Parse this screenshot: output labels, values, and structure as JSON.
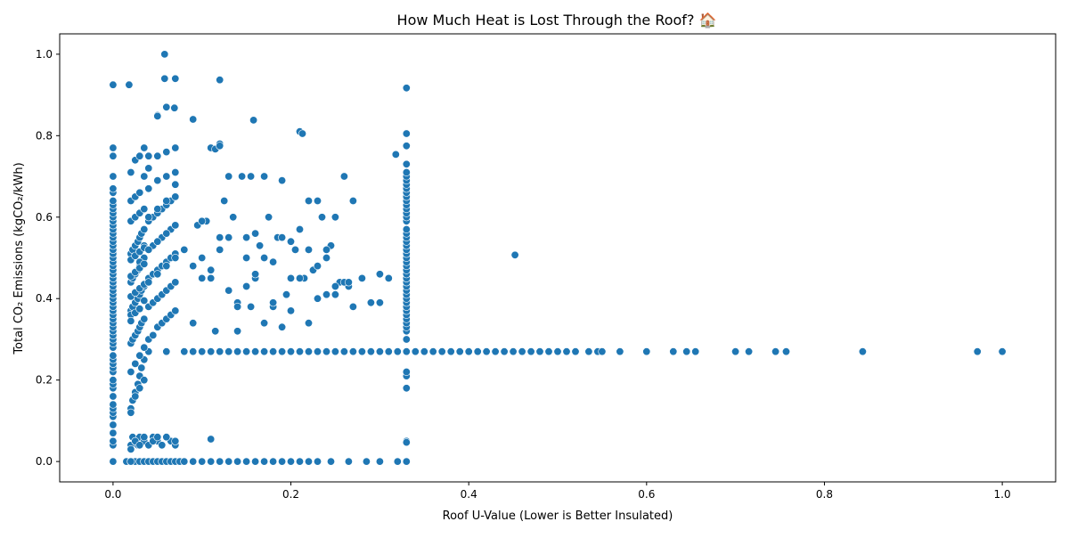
{
  "chart_data": {
    "type": "scatter",
    "title": "How Much Heat is Lost Through the Roof? 🏠",
    "xlabel": "Roof U-Value (Lower is Better Insulated)",
    "ylabel": "Total CO₂ Emissions (kgCO₂/kWh)",
    "xlim": [
      -0.06,
      1.06
    ],
    "ylim": [
      -0.05,
      1.05
    ],
    "xticks": [
      0.0,
      0.2,
      0.4,
      0.6,
      0.8,
      1.0
    ],
    "xtick_labels": [
      "0.0",
      "0.2",
      "0.4",
      "0.6",
      "0.8",
      "1.0"
    ],
    "yticks": [
      0.0,
      0.2,
      0.4,
      0.6,
      0.8,
      1.0
    ],
    "ytick_labels": [
      "0.0",
      "0.2",
      "0.4",
      "0.6",
      "0.8",
      "1.0"
    ],
    "grid": false,
    "legend": "none",
    "marker_color": "#1f77b4",
    "marker_edge": "#ffffff",
    "series": [
      {
        "x": [
          0.0,
          0.0,
          0.0,
          0.0,
          0.0,
          0.0,
          0.0,
          0.0,
          0.0,
          0.0,
          0.0,
          0.0,
          0.0,
          0.0,
          0.0,
          0.0,
          0.0,
          0.0,
          0.0,
          0.0,
          0.0,
          0.0,
          0.0,
          0.0,
          0.0,
          0.0,
          0.0,
          0.0,
          0.0,
          0.0,
          0.0,
          0.0,
          0.0,
          0.0,
          0.0,
          0.0,
          0.0,
          0.0,
          0.0,
          0.0,
          0.0,
          0.0,
          0.0,
          0.0,
          0.0,
          0.0,
          0.0,
          0.0,
          0.0,
          0.0,
          0.0,
          0.0,
          0.0,
          0.0,
          0.0,
          0.0,
          0.0,
          0.0,
          0.0,
          0.0,
          0.33,
          0.33,
          0.33,
          0.33,
          0.33,
          0.33,
          0.33,
          0.33,
          0.33,
          0.33,
          0.33,
          0.33,
          0.33,
          0.33,
          0.33,
          0.33,
          0.33,
          0.33,
          0.33,
          0.33,
          0.33,
          0.33,
          0.33,
          0.33,
          0.33,
          0.33,
          0.33,
          0.33,
          0.33,
          0.33,
          0.33,
          0.33,
          0.33,
          0.33,
          0.33,
          0.33,
          0.33,
          0.33,
          0.33,
          0.33,
          0.33,
          0.33,
          0.33,
          0.33,
          0.33,
          0.33,
          0.33,
          0.33,
          0.33,
          0.33,
          0.04,
          0.06,
          0.08,
          0.09,
          0.1,
          0.11,
          0.12,
          0.13,
          0.14,
          0.15,
          0.16,
          0.17,
          0.18,
          0.19,
          0.2,
          0.21,
          0.22,
          0.23,
          0.24,
          0.25,
          0.26,
          0.27,
          0.28,
          0.29,
          0.3,
          0.31,
          0.32,
          0.34,
          0.35,
          0.36,
          0.37,
          0.38,
          0.39,
          0.4,
          0.41,
          0.42,
          0.43,
          0.44,
          0.45,
          0.46,
          0.47,
          0.48,
          0.49,
          0.5,
          0.51,
          0.52,
          0.535,
          0.545,
          0.55,
          0.57,
          0.6,
          0.63,
          0.645,
          0.655,
          0.7,
          0.715,
          0.745,
          0.757,
          0.843,
          0.972,
          1.0,
          0.015,
          0.02,
          0.025,
          0.03,
          0.035,
          0.04,
          0.045,
          0.05,
          0.055,
          0.06,
          0.065,
          0.07,
          0.075,
          0.08,
          0.09,
          0.1,
          0.11,
          0.12,
          0.13,
          0.14,
          0.15,
          0.16,
          0.17,
          0.18,
          0.19,
          0.2,
          0.21,
          0.22,
          0.23,
          0.245,
          0.265,
          0.285,
          0.3,
          0.32,
          0.33,
          0.02,
          0.022,
          0.025,
          0.028,
          0.03,
          0.035,
          0.04,
          0.045,
          0.05,
          0.055,
          0.06,
          0.065,
          0.07,
          0.02,
          0.025,
          0.03,
          0.035,
          0.04,
          0.045,
          0.05,
          0.055,
          0.06,
          0.07,
          0.11,
          0.33,
          0.02,
          0.022,
          0.025,
          0.028,
          0.03,
          0.032,
          0.035,
          0.02,
          0.022,
          0.025,
          0.028,
          0.03,
          0.032,
          0.035,
          0.02,
          0.022,
          0.025,
          0.028,
          0.03,
          0.032,
          0.035,
          0.02,
          0.022,
          0.025,
          0.028,
          0.03,
          0.032,
          0.035,
          0.02,
          0.022,
          0.025,
          0.028,
          0.03,
          0.032,
          0.035,
          0.02,
          0.025,
          0.03,
          0.035,
          0.02,
          0.025,
          0.03,
          0.035,
          0.02,
          0.025,
          0.03,
          0.035,
          0.02,
          0.025,
          0.03,
          0.035,
          0.02,
          0.025,
          0.03,
          0.035,
          0.02,
          0.025,
          0.03,
          0.035,
          0.02,
          0.025,
          0.03,
          0.035,
          0.02,
          0.025,
          0.03,
          0.035,
          0.02,
          0.025,
          0.03,
          0.035,
          0.02,
          0.025,
          0.03,
          0.035,
          0.04,
          0.045,
          0.05,
          0.055,
          0.06,
          0.065,
          0.07,
          0.04,
          0.045,
          0.05,
          0.055,
          0.06,
          0.065,
          0.07,
          0.04,
          0.045,
          0.05,
          0.055,
          0.06,
          0.065,
          0.07,
          0.04,
          0.045,
          0.05,
          0.055,
          0.06,
          0.065,
          0.07,
          0.04,
          0.045,
          0.05,
          0.055,
          0.06,
          0.065,
          0.07,
          0.04,
          0.05,
          0.06,
          0.07,
          0.04,
          0.05,
          0.06,
          0.07,
          0.04,
          0.05,
          0.06,
          0.07,
          0.04,
          0.05,
          0.06,
          0.07,
          0.04,
          0.05,
          0.06,
          0.07,
          0.04,
          0.05,
          0.06,
          0.07,
          0.08,
          0.09,
          0.095,
          0.1,
          0.105,
          0.11,
          0.115,
          0.12,
          0.125,
          0.13,
          0.135,
          0.14,
          0.145,
          0.15,
          0.155,
          0.16,
          0.165,
          0.17,
          0.175,
          0.18,
          0.185,
          0.19,
          0.195,
          0.2,
          0.205,
          0.21,
          0.215,
          0.22,
          0.225,
          0.23,
          0.235,
          0.24,
          0.245,
          0.25,
          0.255,
          0.26,
          0.265,
          0.27,
          0.28,
          0.29,
          0.3,
          0.31,
          0.09,
          0.1,
          0.11,
          0.12,
          0.13,
          0.14,
          0.15,
          0.16,
          0.17,
          0.18,
          0.19,
          0.2,
          0.21,
          0.22,
          0.23,
          0.24,
          0.25,
          0.26,
          0.265,
          0.29,
          0.1,
          0.11,
          0.12,
          0.13,
          0.14,
          0.15,
          0.155,
          0.16,
          0.17,
          0.18,
          0.19,
          0.2,
          0.21,
          0.22,
          0.23,
          0.24,
          0.25,
          0.26,
          0.27,
          0.28,
          0.3,
          0.018,
          0.12,
          0.158,
          0.213,
          0.33,
          0.318,
          0.452,
          0.02,
          0.058,
          0.0,
          0.05,
          0.09,
          0.115,
          0.12,
          0.069,
          0.058
        ],
        "y": [
          0.0,
          0.04,
          0.05,
          0.07,
          0.09,
          0.11,
          0.12,
          0.13,
          0.14,
          0.16,
          0.18,
          0.19,
          0.2,
          0.22,
          0.23,
          0.24,
          0.25,
          0.26,
          0.28,
          0.29,
          0.3,
          0.31,
          0.32,
          0.33,
          0.34,
          0.35,
          0.36,
          0.37,
          0.38,
          0.39,
          0.4,
          0.41,
          0.42,
          0.43,
          0.44,
          0.45,
          0.46,
          0.47,
          0.48,
          0.49,
          0.5,
          0.51,
          0.52,
          0.53,
          0.54,
          0.55,
          0.56,
          0.57,
          0.58,
          0.59,
          0.6,
          0.61,
          0.62,
          0.63,
          0.64,
          0.66,
          0.67,
          0.7,
          0.75,
          0.77,
          0.0,
          0.05,
          0.18,
          0.21,
          0.22,
          0.27,
          0.32,
          0.33,
          0.34,
          0.35,
          0.36,
          0.37,
          0.38,
          0.39,
          0.4,
          0.41,
          0.42,
          0.43,
          0.44,
          0.45,
          0.46,
          0.47,
          0.48,
          0.49,
          0.5,
          0.51,
          0.52,
          0.53,
          0.54,
          0.55,
          0.56,
          0.57,
          0.59,
          0.6,
          0.61,
          0.62,
          0.63,
          0.64,
          0.65,
          0.66,
          0.67,
          0.68,
          0.69,
          0.7,
          0.71,
          0.73,
          0.775,
          0.805,
          0.917,
          0.3,
          0.27,
          0.27,
          0.27,
          0.27,
          0.27,
          0.27,
          0.27,
          0.27,
          0.27,
          0.27,
          0.27,
          0.27,
          0.27,
          0.27,
          0.27,
          0.27,
          0.27,
          0.27,
          0.27,
          0.27,
          0.27,
          0.27,
          0.27,
          0.27,
          0.27,
          0.27,
          0.27,
          0.27,
          0.27,
          0.27,
          0.27,
          0.27,
          0.27,
          0.27,
          0.27,
          0.27,
          0.27,
          0.27,
          0.27,
          0.27,
          0.27,
          0.27,
          0.27,
          0.27,
          0.27,
          0.27,
          0.27,
          0.27,
          0.27,
          0.27,
          0.27,
          0.27,
          0.27,
          0.27,
          0.27,
          0.27,
          0.27,
          0.27,
          0.27,
          0.27,
          0.27,
          0.0,
          0.0,
          0.0,
          0.0,
          0.0,
          0.0,
          0.0,
          0.0,
          0.0,
          0.0,
          0.0,
          0.0,
          0.0,
          0.0,
          0.0,
          0.0,
          0.0,
          0.0,
          0.0,
          0.0,
          0.0,
          0.0,
          0.0,
          0.0,
          0.0,
          0.0,
          0.0,
          0.0,
          0.0,
          0.0,
          0.0,
          0.0,
          0.0,
          0.0,
          0.0,
          0.04,
          0.06,
          0.05,
          0.04,
          0.06,
          0.05,
          0.04,
          0.06,
          0.05,
          0.04,
          0.06,
          0.05,
          0.04,
          0.03,
          0.05,
          0.04,
          0.06,
          0.04,
          0.05,
          0.06,
          0.04,
          0.06,
          0.05,
          0.055,
          0.047,
          0.13,
          0.15,
          0.17,
          0.19,
          0.21,
          0.23,
          0.25,
          0.29,
          0.3,
          0.31,
          0.32,
          0.33,
          0.34,
          0.35,
          0.37,
          0.38,
          0.39,
          0.4,
          0.41,
          0.42,
          0.43,
          0.44,
          0.45,
          0.46,
          0.47,
          0.48,
          0.49,
          0.5,
          0.51,
          0.52,
          0.53,
          0.54,
          0.55,
          0.56,
          0.57,
          0.59,
          0.6,
          0.61,
          0.62,
          0.64,
          0.65,
          0.66,
          0.7,
          0.71,
          0.74,
          0.75,
          0.77,
          0.36,
          0.46,
          0.49,
          0.53,
          0.12,
          0.16,
          0.18,
          0.2,
          0.22,
          0.24,
          0.26,
          0.28,
          0.345,
          0.365,
          0.375,
          0.395,
          0.405,
          0.415,
          0.425,
          0.435,
          0.455,
          0.465,
          0.475,
          0.485,
          0.495,
          0.505,
          0.515,
          0.525,
          0.3,
          0.31,
          0.33,
          0.34,
          0.35,
          0.36,
          0.37,
          0.38,
          0.39,
          0.4,
          0.41,
          0.42,
          0.43,
          0.44,
          0.45,
          0.46,
          0.47,
          0.48,
          0.49,
          0.5,
          0.51,
          0.52,
          0.53,
          0.54,
          0.55,
          0.56,
          0.57,
          0.58,
          0.59,
          0.6,
          0.61,
          0.62,
          0.63,
          0.64,
          0.65,
          0.67,
          0.69,
          0.7,
          0.71,
          0.72,
          0.75,
          0.76,
          0.77,
          0.75,
          0.85,
          0.87,
          0.94,
          0.6,
          0.62,
          0.64,
          0.68,
          0.44,
          0.46,
          0.48,
          0.5,
          0.52,
          0.54,
          0.56,
          0.58,
          0.52,
          0.34,
          0.58,
          0.5,
          0.59,
          0.47,
          0.32,
          0.52,
          0.64,
          0.55,
          0.6,
          0.32,
          0.7,
          0.55,
          0.38,
          0.56,
          0.53,
          0.5,
          0.6,
          0.38,
          0.55,
          0.69,
          0.41,
          0.45,
          0.52,
          0.57,
          0.45,
          0.64,
          0.47,
          0.64,
          0.6,
          0.5,
          0.53,
          0.6,
          0.44,
          0.7,
          0.43,
          0.38,
          0.45,
          0.39,
          0.46,
          0.45,
          0.48,
          0.45,
          0.45,
          0.55,
          0.42,
          0.39,
          0.5,
          0.45,
          0.34,
          0.49,
          0.55,
          0.54,
          0.45,
          0.52,
          0.48,
          0.52,
          0.43,
          0.44,
          0.44,
          0.39,
          0.59,
          0.77,
          0.78,
          0.7,
          0.38,
          0.43,
          0.7,
          0.46,
          0.7,
          0.39,
          0.33,
          0.37,
          0.81,
          0.34,
          0.4,
          0.41,
          0.41,
          0.7,
          0.64,
          0.45,
          0.39,
          0.925,
          0.937,
          0.838,
          0.805,
          0.917,
          0.754,
          0.507,
          0.0,
          1.0,
          0.925,
          0.848,
          0.84,
          0.767,
          0.775,
          0.868,
          0.94
        ]
      }
    ]
  }
}
